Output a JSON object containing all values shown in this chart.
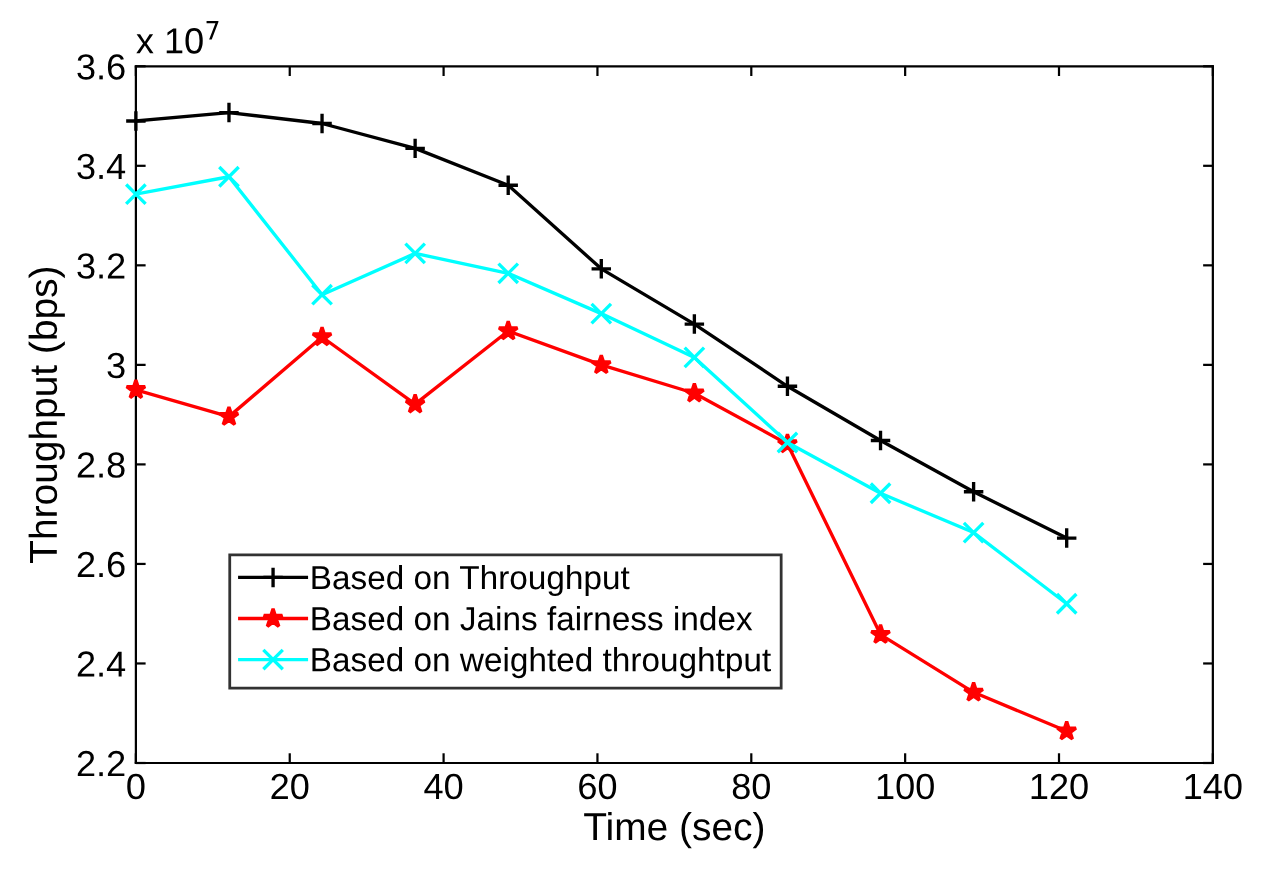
{
  "chart_data": {
    "type": "line",
    "xlabel": "Time (sec)",
    "ylabel": "Throughput (bps)",
    "annotations": [
      "x 10$^{7}$"
    ],
    "x": [
      0,
      12.1,
      24.2,
      36.3,
      48.4,
      60.5,
      72.6,
      84.7,
      96.8,
      108.9,
      121
    ],
    "series": [
      {
        "name": "Based on Throughput",
        "color": "#000000",
        "marker": "plus",
        "values": [
          3.49,
          3.507,
          3.485,
          3.435,
          3.361,
          3.193,
          3.082,
          2.957,
          2.848,
          2.745,
          2.652
        ]
      },
      {
        "name": "Based on Jains fairness index",
        "color": "#ff0000",
        "marker": "star",
        "values": [
          2.95,
          2.896,
          3.056,
          2.921,
          3.068,
          3.0,
          2.943,
          2.841,
          2.458,
          2.342,
          2.264
        ]
      },
      {
        "name": "Based on weighted throughtput",
        "color": "#00ffff",
        "marker": "cross",
        "values": [
          3.343,
          3.378,
          3.141,
          3.224,
          3.184,
          3.103,
          3.015,
          2.844,
          2.742,
          2.663,
          2.52
        ]
      }
    ],
    "xlim": [
      0,
      140
    ],
    "xticks": [
      0,
      20,
      40,
      60,
      80,
      100,
      120,
      140
    ],
    "ylim": [
      2.2,
      3.6
    ],
    "yticks": [
      2.2,
      2.4,
      2.6,
      2.8,
      3,
      3.2,
      3.4,
      3.6
    ],
    "grid": false,
    "legend": "bottom left",
    "line_style": "solid"
  }
}
